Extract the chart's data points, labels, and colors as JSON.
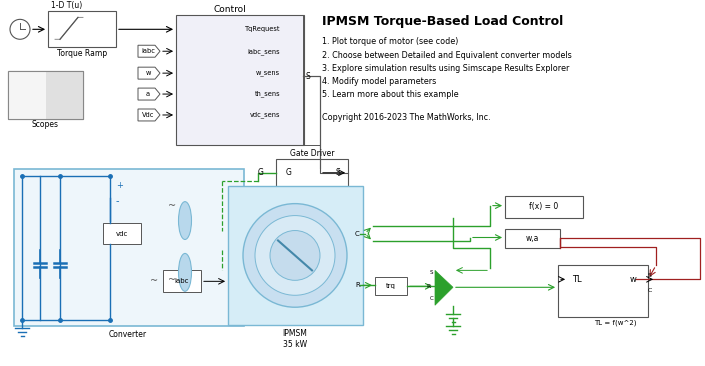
{
  "title": "IPMSM Torque-Based Load Control",
  "description_lines": [
    "1. Plot torque of motor (see code)",
    "2. Choose between Detailed and Equivalent converter models",
    "3. Explore simulation results using Simscape Results Explorer",
    "4. Modify model parameters",
    "5. Learn more about this example"
  ],
  "copyright": "Copyright 2016-2023 The MathWorks, Inc.",
  "bg_color": "#ffffff",
  "blue_color": "#1a6fb5",
  "green_color": "#2ca02c",
  "red_color": "#a02020",
  "block_gray": "#d8d8d8",
  "control_fill": "#f0f4ff",
  "cyan_fill": "#d6edf7",
  "cyan_border": "#7ab8d4",
  "motor_fill": "#c8dff0"
}
